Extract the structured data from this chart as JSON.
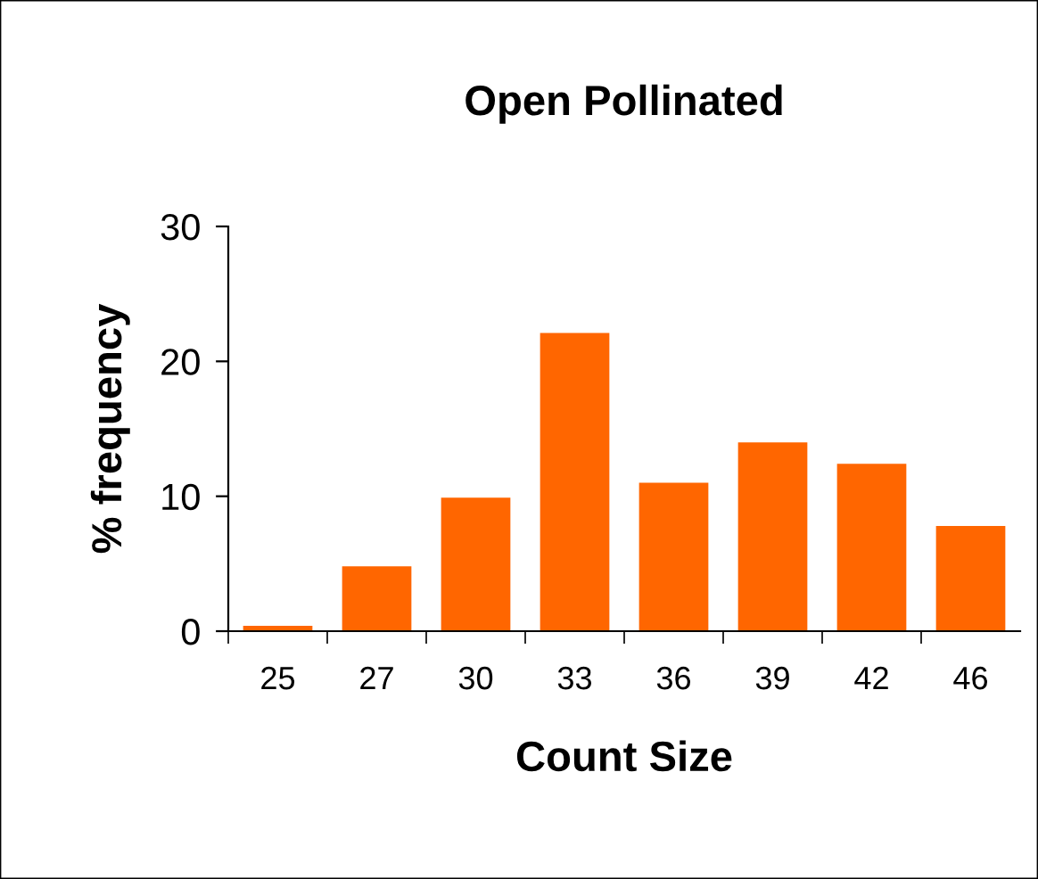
{
  "chart_data": {
    "type": "bar",
    "title": "Open Pollinated",
    "xlabel": "Count Size",
    "ylabel": "% frequency",
    "categories": [
      "25",
      "27",
      "30",
      "33",
      "36",
      "39",
      "42",
      "46"
    ],
    "values": [
      0.4,
      4.8,
      9.9,
      22.1,
      11,
      14,
      12.4,
      7.8
    ],
    "color": "#ff6600",
    "ylim": [
      0,
      30
    ],
    "yticks": [
      0,
      10,
      20,
      30
    ],
    "grid": false,
    "legend": false
  }
}
